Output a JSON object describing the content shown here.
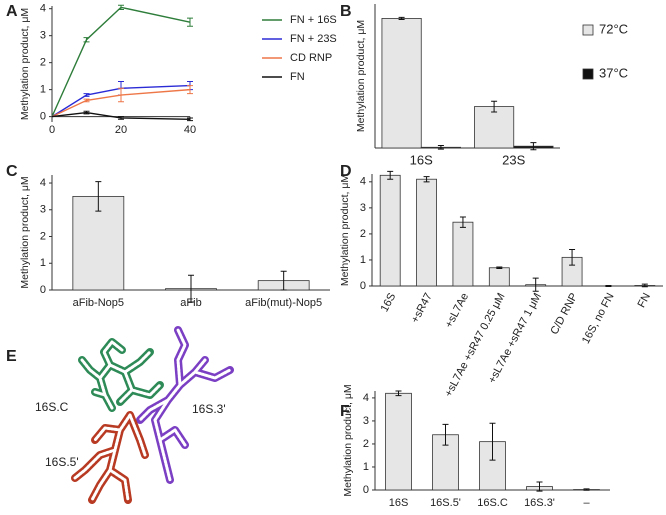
{
  "chart_data": [
    {
      "panel": "A",
      "type": "line",
      "ylabel": "Methylation product, μM",
      "x": [
        0,
        10,
        20,
        40
      ],
      "xlim": [
        0,
        40
      ],
      "xticks": [
        0,
        20,
        40
      ],
      "ylim": [
        -0.2,
        4.1
      ],
      "yticks": [
        0,
        1,
        2,
        3,
        4
      ],
      "series": [
        {
          "name": "FN + 16S",
          "color": "#2e7d3a",
          "values": [
            0,
            2.85,
            4.05,
            3.5
          ],
          "errors": [
            0,
            0.08,
            0.08,
            0.15
          ]
        },
        {
          "name": "FN + 23S",
          "color": "#2b2bd6",
          "values": [
            0,
            0.8,
            1.05,
            1.15
          ],
          "errors": [
            0,
            0.05,
            0.25,
            0.15
          ]
        },
        {
          "name": "CD RNP",
          "color": "#ee7748",
          "values": [
            0,
            0.6,
            0.8,
            1.0
          ],
          "errors": [
            0,
            0.05,
            0.25,
            0.15
          ]
        },
        {
          "name": "FN",
          "color": "#111111",
          "values": [
            0,
            0.15,
            -0.05,
            -0.1
          ],
          "errors": [
            0,
            0.05,
            0.05,
            0.05
          ]
        }
      ]
    },
    {
      "panel": "B",
      "type": "bar",
      "ylabel": "Methylation product, μM",
      "categories": [
        "16S",
        "23S"
      ],
      "ylim": [
        0,
        4
      ],
      "series": [
        {
          "name": "72°C",
          "color": "#e6e6e6",
          "values": [
            3.6,
            1.15
          ],
          "errors": [
            0.03,
            0.15
          ]
        },
        {
          "name": "37°C",
          "color": "#111111",
          "values": [
            0.02,
            0.05
          ],
          "errors": [
            0.05,
            0.1
          ]
        }
      ]
    },
    {
      "panel": "C",
      "type": "bar",
      "ylabel": "Methylation product, μM",
      "categories": [
        "aFib-Nop5",
        "aFib",
        "aFib(mut)-Nop5"
      ],
      "ylim": [
        0,
        4.3
      ],
      "yticks": [
        0,
        1,
        2,
        3,
        4
      ],
      "series": [
        {
          "color": "#e6e6e6",
          "values": [
            3.5,
            0.05,
            0.35
          ],
          "errors": [
            0.55,
            0.5,
            0.35
          ]
        }
      ]
    },
    {
      "panel": "D",
      "type": "bar",
      "ylabel": "Methylation product, μM",
      "categories": [
        "16S",
        "+sR47",
        "+sL7Ae",
        "+sL7Ae +sR47 0.25 μM",
        "+sL7Ae +sR47 1 μM",
        "C/D RNP",
        "16S, no FN",
        "FN"
      ],
      "ylim": [
        0,
        4.3
      ],
      "yticks": [
        0,
        1,
        2,
        3,
        4
      ],
      "series": [
        {
          "color": "#e6e6e6",
          "values": [
            4.25,
            4.1,
            2.45,
            0.7,
            0.05,
            1.1,
            0,
            0.02
          ],
          "errors": [
            0.15,
            0.1,
            0.2,
            0.03,
            0.25,
            0.3,
            0.02,
            0.05
          ]
        }
      ]
    },
    {
      "panel": "F",
      "type": "bar",
      "ylabel": "Methylation product, μM",
      "categories": [
        "16S",
        "16S.5'",
        "16S.C",
        "16S.3'",
        "–"
      ],
      "ylim": [
        0,
        4.3
      ],
      "yticks": [
        0,
        1,
        2,
        3,
        4
      ],
      "series": [
        {
          "color": "#e6e6e6",
          "values": [
            4.2,
            2.4,
            2.1,
            0.15,
            0.02
          ],
          "errors": [
            0.1,
            0.45,
            0.8,
            0.2,
            0.03
          ]
        }
      ]
    }
  ],
  "diagram": {
    "panel": "E",
    "labels": [
      "16S.C",
      "16S.3'",
      "16S.5'"
    ]
  }
}
